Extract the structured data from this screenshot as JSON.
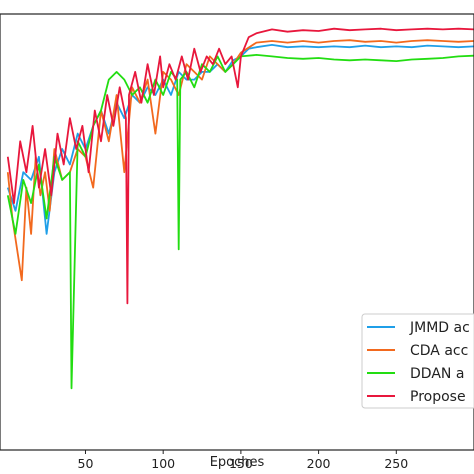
{
  "chart_data": {
    "type": "line",
    "title": "",
    "xlabel": "Epoches",
    "ylabel": "",
    "xlim": [
      -5,
      300
    ],
    "ylim": [
      0.44,
      1.005
    ],
    "xticks": [
      50,
      100,
      150,
      200,
      250
    ],
    "grid": false,
    "legend_position": "bottom-right",
    "legend": [
      {
        "label": "JMMD ac",
        "color": "#1f9fe8"
      },
      {
        "label": "CDA acc",
        "color": "#f2691e"
      },
      {
        "label": "DDAN a",
        "color": "#22dd11"
      },
      {
        "label": "Propose",
        "color": "#e8173c"
      }
    ],
    "series": [
      {
        "name": "JMMD ac",
        "color": "#1f9fe8",
        "x": [
          0,
          5,
          10,
          15,
          20,
          25,
          30,
          35,
          40,
          45,
          50,
          55,
          60,
          65,
          70,
          75,
          80,
          85,
          90,
          95,
          100,
          105,
          110,
          115,
          120,
          125,
          130,
          135,
          140,
          145,
          150,
          155,
          160,
          170,
          180,
          190,
          200,
          210,
          220,
          230,
          240,
          250,
          260,
          270,
          280,
          290,
          300
        ],
        "y": [
          0.78,
          0.75,
          0.8,
          0.79,
          0.82,
          0.72,
          0.8,
          0.83,
          0.81,
          0.85,
          0.83,
          0.86,
          0.88,
          0.85,
          0.89,
          0.87,
          0.9,
          0.89,
          0.91,
          0.9,
          0.92,
          0.9,
          0.93,
          0.92,
          0.92,
          0.93,
          0.93,
          0.94,
          0.93,
          0.945,
          0.95,
          0.96,
          0.962,
          0.965,
          0.962,
          0.963,
          0.962,
          0.963,
          0.962,
          0.964,
          0.962,
          0.963,
          0.962,
          0.964,
          0.963,
          0.962,
          0.963
        ]
      },
      {
        "name": "CDA acc",
        "color": "#f2691e",
        "x": [
          0,
          3,
          6,
          9,
          12,
          15,
          18,
          21,
          24,
          27,
          30,
          35,
          40,
          45,
          50,
          55,
          60,
          65,
          70,
          75,
          80,
          85,
          90,
          95,
          100,
          105,
          110,
          115,
          120,
          125,
          130,
          135,
          140,
          145,
          150,
          160,
          170,
          180,
          190,
          200,
          210,
          220,
          230,
          240,
          250,
          260,
          270,
          280,
          290,
          300
        ],
        "y": [
          0.8,
          0.74,
          0.7,
          0.66,
          0.78,
          0.72,
          0.82,
          0.77,
          0.8,
          0.75,
          0.83,
          0.79,
          0.8,
          0.83,
          0.82,
          0.78,
          0.88,
          0.84,
          0.9,
          0.8,
          0.91,
          0.89,
          0.92,
          0.85,
          0.93,
          0.92,
          0.9,
          0.94,
          0.93,
          0.92,
          0.95,
          0.94,
          0.93,
          0.94,
          0.955,
          0.968,
          0.97,
          0.968,
          0.97,
          0.968,
          0.97,
          0.971,
          0.969,
          0.97,
          0.968,
          0.97,
          0.971,
          0.97,
          0.969,
          0.97
        ]
      },
      {
        "name": "DDAN a",
        "color": "#22dd11",
        "x": [
          0,
          5,
          10,
          15,
          20,
          25,
          30,
          35,
          40,
          41,
          45,
          50,
          55,
          60,
          65,
          70,
          75,
          80,
          85,
          90,
          95,
          100,
          105,
          109,
          110,
          111,
          115,
          120,
          125,
          130,
          135,
          140,
          145,
          150,
          160,
          170,
          180,
          190,
          200,
          210,
          220,
          230,
          240,
          250,
          260,
          270,
          280,
          290,
          300
        ],
        "y": [
          0.77,
          0.72,
          0.79,
          0.76,
          0.81,
          0.74,
          0.82,
          0.79,
          0.8,
          0.52,
          0.84,
          0.82,
          0.86,
          0.88,
          0.92,
          0.93,
          0.92,
          0.9,
          0.91,
          0.89,
          0.92,
          0.9,
          0.93,
          0.92,
          0.7,
          0.92,
          0.93,
          0.91,
          0.94,
          0.93,
          0.95,
          0.93,
          0.94,
          0.95,
          0.952,
          0.95,
          0.948,
          0.947,
          0.948,
          0.946,
          0.945,
          0.946,
          0.945,
          0.944,
          0.946,
          0.947,
          0.948,
          0.95,
          0.951
        ]
      },
      {
        "name": "Propose",
        "color": "#e8173c",
        "x": [
          0,
          4,
          8,
          12,
          16,
          20,
          24,
          28,
          32,
          36,
          40,
          44,
          48,
          52,
          56,
          60,
          64,
          68,
          72,
          76,
          77,
          78,
          82,
          86,
          90,
          94,
          98,
          100,
          104,
          108,
          112,
          116,
          120,
          124,
          128,
          132,
          136,
          140,
          144,
          148,
          150,
          155,
          160,
          170,
          180,
          190,
          200,
          210,
          220,
          230,
          240,
          250,
          260,
          270,
          280,
          290,
          300
        ],
        "y": [
          0.82,
          0.76,
          0.84,
          0.8,
          0.86,
          0.78,
          0.83,
          0.77,
          0.85,
          0.81,
          0.87,
          0.83,
          0.86,
          0.8,
          0.88,
          0.84,
          0.9,
          0.86,
          0.91,
          0.87,
          0.63,
          0.9,
          0.93,
          0.89,
          0.94,
          0.9,
          0.95,
          0.91,
          0.94,
          0.92,
          0.95,
          0.92,
          0.96,
          0.93,
          0.95,
          0.94,
          0.96,
          0.94,
          0.95,
          0.91,
          0.95,
          0.975,
          0.98,
          0.985,
          0.982,
          0.984,
          0.983,
          0.986,
          0.984,
          0.985,
          0.986,
          0.984,
          0.985,
          0.986,
          0.985,
          0.986,
          0.985
        ]
      }
    ]
  }
}
